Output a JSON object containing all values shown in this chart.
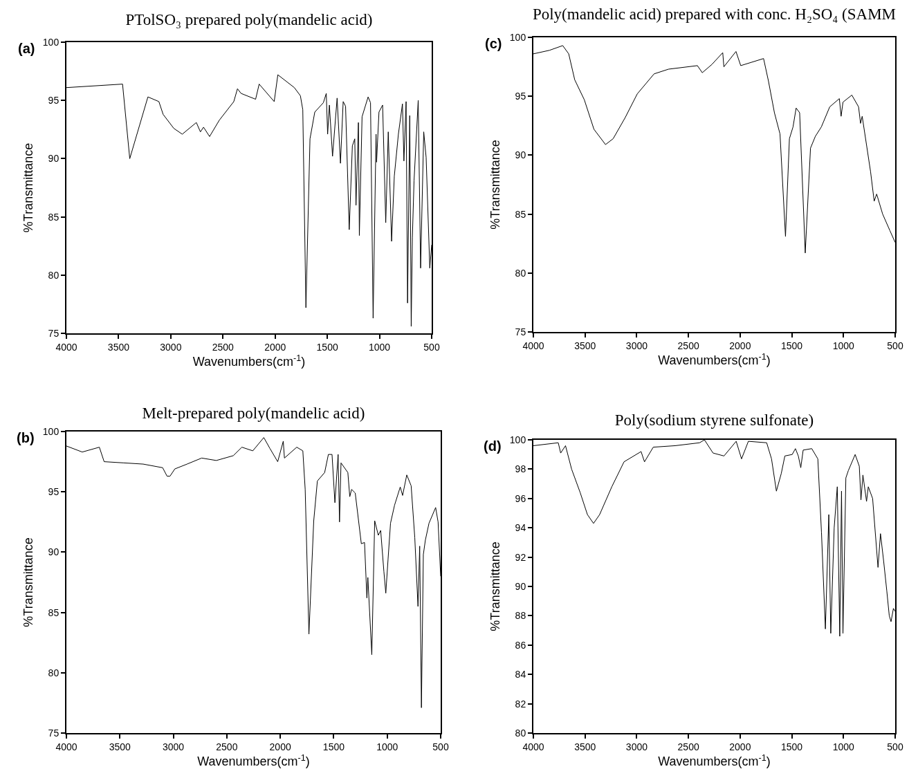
{
  "chart_data": [
    {
      "type": "line",
      "title": "PTolSO₃ prepared poly(mandelic acid)",
      "xlabel": "Wavenumbers(cm$^{-1}$)",
      "ylabel": "%Transmittance",
      "annotations": [
        "(a)"
      ],
      "xlim": [
        4000,
        500
      ],
      "xticks": [
        4000,
        3500,
        3000,
        2500,
        2000,
        1500,
        1000,
        500
      ],
      "ylim": [
        75,
        100
      ],
      "yticks": [
        75,
        80,
        85,
        90,
        95,
        100
      ],
      "series": [
        {
          "color": "#000000",
          "x": [
            4000,
            3462,
            3393,
            3219,
            3114,
            3073,
            2971,
            2890,
            2755,
            2716,
            2686,
            2628,
            2535,
            2396,
            2361,
            2326,
            2187,
            2153,
            2009,
            1974,
            1816,
            1758,
            1735,
            1705,
            1666,
            1620,
            1538,
            1510,
            1497,
            1480,
            1450,
            1406,
            1374,
            1348,
            1325,
            1290,
            1260,
            1237,
            1225,
            1202,
            1193,
            1167,
            1109,
            1086,
            1061,
            1033,
            1028,
            1005,
            970,
            940,
            916,
            884,
            858,
            819,
            780,
            766,
            745,
            731,
            710,
            696,
            685,
            669,
            629,
            606,
            576,
            553,
            518,
            500
          ],
          "values": [
            96.1,
            96.4,
            90.0,
            95.3,
            94.9,
            93.8,
            92.6,
            92.1,
            93.1,
            92.3,
            92.7,
            91.9,
            93.3,
            94.9,
            96.0,
            95.6,
            95.1,
            96.4,
            94.9,
            97.2,
            96.1,
            95.4,
            94.2,
            77.2,
            91.7,
            94.0,
            94.8,
            95.6,
            92.1,
            94.6,
            90.2,
            95.2,
            89.6,
            94.9,
            94.5,
            83.9,
            91.1,
            91.7,
            86.0,
            93.1,
            83.4,
            93.6,
            95.3,
            94.8,
            76.3,
            92.1,
            89.7,
            94.0,
            94.6,
            84.5,
            92.3,
            82.9,
            88.5,
            92.1,
            94.7,
            89.8,
            94.9,
            77.6,
            93.7,
            75.6,
            83.2,
            88.1,
            95.0,
            80.6,
            92.3,
            90.1,
            80.6,
            82.6
          ]
        }
      ]
    },
    {
      "type": "line",
      "title": "Poly(mandelic acid) prepared with conc. H₂SO₄ (SAMM",
      "xlabel": "Wavenumbers(cm$^{-1}$)",
      "ylabel": "%Transmittance",
      "annotations": [
        "(c)"
      ],
      "xlim": [
        4000,
        500
      ],
      "xticks": [
        4000,
        3500,
        3000,
        2500,
        2000,
        1500,
        1000,
        500
      ],
      "ylim": [
        75,
        100
      ],
      "yticks": [
        75,
        80,
        85,
        90,
        95,
        100
      ],
      "series": [
        {
          "color": "#000000",
          "x": [
            4000,
            3844,
            3716,
            3658,
            3600,
            3507,
            3414,
            3302,
            3228,
            3111,
            2995,
            2832,
            2692,
            2413,
            2366,
            2273,
            2168,
            2157,
            2040,
            1994,
            1773,
            1726,
            1668,
            1614,
            1561,
            1523,
            1488,
            1458,
            1424,
            1370,
            1319,
            1272,
            1214,
            1133,
            1040,
            1023,
            1005,
            919,
            854,
            835,
            819,
            738,
            703,
            679,
            621,
            551,
            500
          ],
          "values": [
            98.6,
            98.9,
            99.3,
            98.6,
            96.4,
            94.7,
            92.2,
            90.9,
            91.4,
            93.2,
            95.2,
            96.9,
            97.3,
            97.6,
            97.0,
            97.7,
            98.7,
            97.5,
            98.8,
            97.6,
            98.2,
            96.3,
            93.6,
            91.8,
            83.1,
            91.4,
            92.4,
            94.0,
            93.6,
            81.7,
            90.6,
            91.6,
            92.4,
            94.1,
            94.8,
            93.3,
            94.5,
            95.1,
            94.1,
            92.7,
            93.3,
            88.6,
            86.1,
            86.7,
            85.0,
            83.6,
            82.6
          ]
        }
      ]
    },
    {
      "type": "line",
      "title": "Melt-prepared poly(mandelic acid)",
      "xlabel": "Wavenumbers(cm$^{-1}$)",
      "ylabel": "%Transmittance",
      "annotations": [
        "(b)"
      ],
      "xlim": [
        4000,
        500
      ],
      "xticks": [
        4000,
        3500,
        3000,
        2500,
        2000,
        1500,
        1000,
        500
      ],
      "ylim": [
        75,
        100
      ],
      "yticks": [
        75,
        80,
        85,
        90,
        95,
        100
      ],
      "series": [
        {
          "color": "#000000",
          "x": [
            4000,
            3852,
            3692,
            3647,
            3464,
            3282,
            3100,
            3059,
            3031,
            2986,
            2872,
            2735,
            2598,
            2439,
            2359,
            2257,
            2154,
            2097,
            2024,
            1972,
            1961,
            1846,
            1789,
            1767,
            1732,
            1687,
            1653,
            1585,
            1550,
            1516,
            1489,
            1459,
            1446,
            1432,
            1368,
            1350,
            1333,
            1299,
            1242,
            1212,
            1190,
            1181,
            1144,
            1117,
            1083,
            1061,
            1031,
            1013,
            992,
            969,
            931,
            878,
            856,
            817,
            776,
            742,
            712,
            696,
            680,
            662,
            643,
            609,
            547,
            524,
            500
          ],
          "values": [
            98.8,
            98.3,
            98.7,
            97.5,
            97.4,
            97.3,
            97.0,
            96.3,
            96.3,
            96.9,
            97.3,
            97.8,
            97.6,
            98.0,
            98.7,
            98.4,
            99.5,
            98.6,
            97.5,
            99.2,
            97.8,
            98.7,
            98.4,
            95.2,
            83.2,
            92.6,
            95.9,
            96.6,
            98.1,
            98.1,
            94.1,
            98.1,
            92.5,
            97.4,
            96.6,
            94.6,
            95.2,
            94.9,
            90.7,
            90.8,
            86.2,
            87.9,
            81.5,
            92.6,
            91.4,
            91.8,
            88.4,
            86.6,
            89.4,
            92.4,
            93.9,
            95.4,
            94.7,
            96.4,
            95.5,
            91.2,
            85.5,
            90.5,
            77.1,
            89.8,
            91.0,
            92.4,
            93.7,
            92.5,
            88.0
          ]
        }
      ]
    },
    {
      "type": "line",
      "title": "Poly(sodium styrene sulfonate)",
      "xlabel": "Wavenumbers(cm$^{-1}$)",
      "ylabel": "%Transmittance",
      "annotations": [
        "(d)"
      ],
      "xlim": [
        4000,
        500
      ],
      "xticks": [
        4000,
        3500,
        3000,
        2500,
        2000,
        1500,
        1000,
        500
      ],
      "ylim": [
        80,
        100
      ],
      "yticks": [
        80,
        82,
        84,
        86,
        88,
        90,
        92,
        94,
        96,
        98,
        100
      ],
      "series": [
        {
          "color": "#000000",
          "x": [
            4000,
            3759,
            3736,
            3689,
            3630,
            3547,
            3477,
            3418,
            3359,
            3241,
            3123,
            2958,
            2925,
            2840,
            2628,
            2392,
            2345,
            2262,
            2156,
            2038,
            1986,
            1920,
            1743,
            1696,
            1649,
            1602,
            1567,
            1496,
            1465,
            1437,
            1413,
            1390,
            1307,
            1248,
            1213,
            1175,
            1142,
            1123,
            1090,
            1060,
            1036,
            1019,
            1005,
            977,
            953,
            887,
            847,
            831,
            812,
            777,
            760,
            718,
            666,
            642,
            611,
            581,
            557,
            540,
            517,
            500
          ],
          "values": [
            99.6,
            99.8,
            99.1,
            99.6,
            98.0,
            96.4,
            94.9,
            94.3,
            94.9,
            96.8,
            98.5,
            99.2,
            98.5,
            99.5,
            99.6,
            99.8,
            100,
            99.1,
            98.9,
            99.9,
            98.7,
            99.9,
            99.8,
            98.7,
            96.5,
            97.7,
            98.9,
            99.0,
            99.4,
            98.9,
            98.1,
            99.3,
            99.4,
            98.7,
            93.7,
            87.1,
            94.9,
            86.8,
            94.0,
            96.8,
            86.6,
            96.5,
            86.8,
            97.4,
            97.9,
            99.0,
            98.2,
            95.9,
            97.6,
            95.8,
            96.8,
            96.0,
            91.3,
            93.6,
            91.7,
            89.7,
            88.0,
            87.6,
            88.5,
            88.3
          ]
        }
      ]
    }
  ]
}
